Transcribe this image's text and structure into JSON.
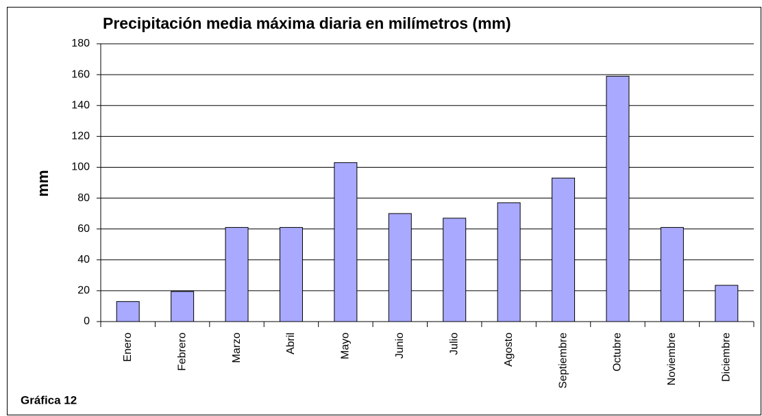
{
  "chart_data": {
    "type": "bar",
    "title": "Precipitación media máxima diaria en milímetros (mm)",
    "y_label": "mm",
    "annotation": "Gráfica 12",
    "categories": [
      "Enero",
      "Febrero",
      "Marzo",
      "Abril",
      "Mayo",
      "Junio",
      "Julio",
      "Agosto",
      "Septiembre",
      "Octubre",
      "Noviembre",
      "Diciembre"
    ],
    "values": [
      13,
      19.5,
      61,
      61,
      103,
      70,
      67,
      77,
      93,
      159,
      61,
      23.5
    ],
    "color": "#a9a9ff",
    "ylim": [
      0,
      180
    ],
    "yticks": [
      0,
      20,
      40,
      60,
      80,
      100,
      120,
      140,
      160,
      180
    ],
    "grid": true
  }
}
